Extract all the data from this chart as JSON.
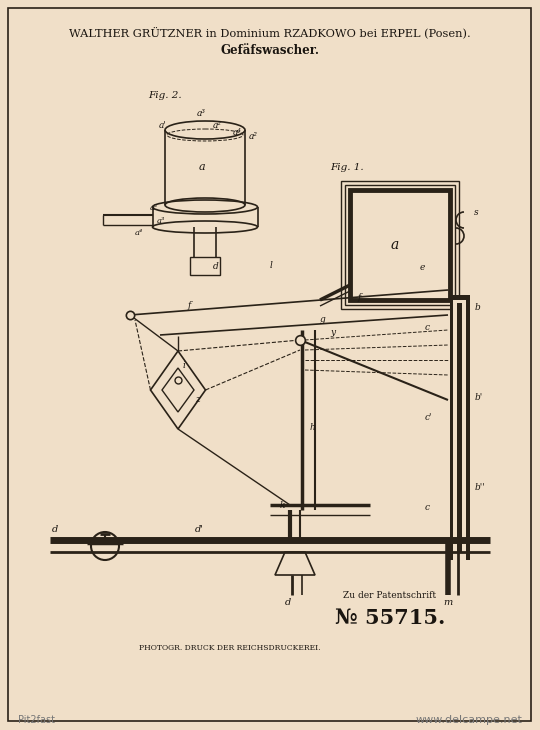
{
  "bg_color": "#f0dfc8",
  "line_color": "#2a2218",
  "text_color": "#1a1510",
  "title_line1": "WALTHER GRÜTZNER in Dominium RZADKOWO bei ERPEL (Posen).",
  "title_line2": "Gefäfswascher.",
  "patent_label": "Zu der Patentschrift",
  "patent_number": "№ 55715.",
  "footer": "PHOTOGR. DRUCK DER REICHSDRUCKEREI.",
  "watermark_left": "Pit2fast",
  "watermark_right": "www.delcampe.net",
  "fig1_label": "Fig. 1.",
  "fig2_label": "Fig. 2."
}
